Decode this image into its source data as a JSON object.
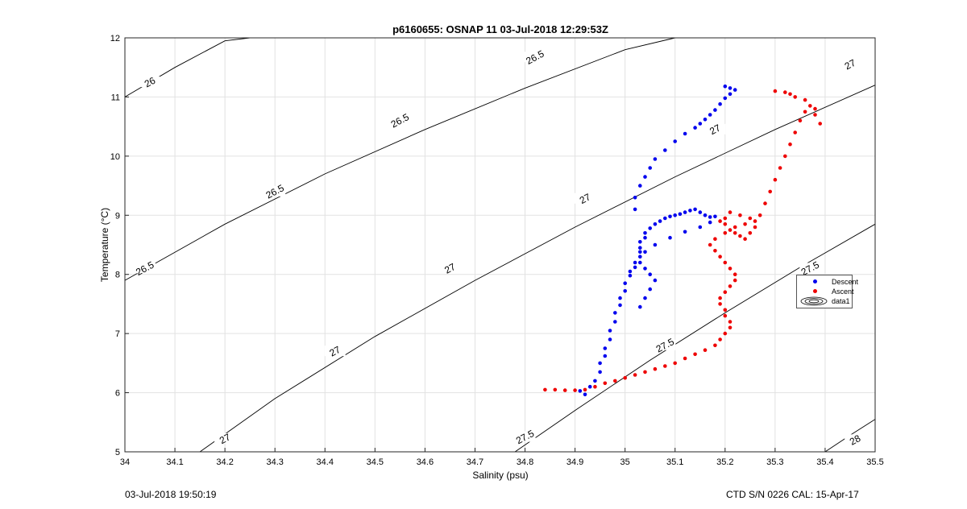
{
  "chart_data": {
    "type": "scatter",
    "title": "p6160655: OSNAP 11 03-Jul-2018 12:29:53Z",
    "xlabel": "Salinity (psu)",
    "ylabel": "Temperature (°C)",
    "xlim": [
      34,
      35.5
    ],
    "ylim": [
      5,
      12
    ],
    "x_ticks": [
      "34",
      "34.1",
      "34.2",
      "34.3",
      "34.4",
      "34.5",
      "34.6",
      "34.7",
      "34.8",
      "34.9",
      "35",
      "35.1",
      "35.2",
      "35.3",
      "35.4",
      "35.5"
    ],
    "y_ticks": [
      "5",
      "6",
      "7",
      "8",
      "9",
      "10",
      "11",
      "12"
    ],
    "grid": true,
    "legend_placement": "right-middle",
    "colors": {
      "descent": "#0000ee",
      "ascent": "#ee0000",
      "contour": "#000000",
      "grid": "#e2e2e2"
    },
    "series": [
      {
        "name": "Descent",
        "color": "#0000ee",
        "x": [
          34.92,
          34.91,
          34.93,
          34.94,
          34.95,
          34.95,
          34.96,
          34.96,
          34.97,
          34.97,
          34.98,
          34.98,
          34.99,
          34.99,
          35.0,
          35.0,
          35.01,
          35.01,
          35.02,
          35.02,
          35.03,
          35.03,
          35.03,
          35.03,
          35.04,
          35.04,
          35.05,
          35.06,
          35.07,
          35.08,
          35.09,
          35.1,
          35.11,
          35.12,
          35.13,
          35.14,
          35.15,
          35.16,
          35.17,
          35.18,
          35.17,
          35.15,
          35.12,
          35.09,
          35.06,
          35.04,
          35.03,
          35.04,
          35.05,
          35.06,
          35.05,
          35.04,
          35.03,
          35.02,
          35.02,
          35.03,
          35.04,
          35.05,
          35.06,
          35.08,
          35.1,
          35.12,
          35.14,
          35.15,
          35.16,
          35.17,
          35.18,
          35.19,
          35.2,
          35.21,
          35.22,
          35.21,
          35.2
        ],
        "y": [
          5.97,
          6.03,
          6.1,
          6.2,
          6.35,
          6.5,
          6.62,
          6.75,
          6.9,
          7.05,
          7.2,
          7.35,
          7.48,
          7.6,
          7.72,
          7.85,
          7.98,
          8.05,
          8.12,
          8.2,
          8.3,
          8.38,
          8.45,
          8.55,
          8.62,
          8.7,
          8.78,
          8.85,
          8.9,
          8.95,
          8.98,
          9.0,
          9.02,
          9.05,
          9.08,
          9.1,
          9.05,
          9.0,
          8.97,
          8.98,
          8.88,
          8.8,
          8.72,
          8.62,
          8.5,
          8.38,
          8.2,
          8.1,
          8.0,
          7.9,
          7.75,
          7.6,
          7.45,
          9.1,
          9.3,
          9.5,
          9.65,
          9.8,
          9.95,
          10.1,
          10.25,
          10.38,
          10.48,
          10.55,
          10.62,
          10.7,
          10.78,
          10.88,
          10.98,
          11.05,
          11.12,
          11.15,
          11.18
        ]
      },
      {
        "name": "Ascent",
        "color": "#ee0000",
        "x": [
          34.84,
          34.86,
          34.88,
          34.9,
          34.92,
          34.94,
          34.96,
          34.98,
          35.0,
          35.02,
          35.04,
          35.06,
          35.08,
          35.1,
          35.12,
          35.14,
          35.16,
          35.18,
          35.19,
          35.2,
          35.21,
          35.21,
          35.2,
          35.2,
          35.19,
          35.19,
          35.2,
          35.21,
          35.22,
          35.22,
          35.21,
          35.2,
          35.19,
          35.18,
          35.17,
          35.18,
          35.2,
          35.22,
          35.24,
          35.26,
          35.25,
          35.23,
          35.21,
          35.2,
          35.19,
          35.2,
          35.21,
          35.22,
          35.23,
          35.24,
          35.25,
          35.26,
          35.27,
          35.28,
          35.29,
          35.3,
          35.31,
          35.32,
          35.33,
          35.34,
          35.35,
          35.36,
          35.37,
          35.38,
          35.39,
          35.38,
          35.36,
          35.34,
          35.33,
          35.32,
          35.3
        ],
        "y": [
          6.05,
          6.05,
          6.04,
          6.04,
          6.05,
          6.1,
          6.16,
          6.2,
          6.25,
          6.3,
          6.35,
          6.4,
          6.45,
          6.5,
          6.58,
          6.65,
          6.72,
          6.8,
          6.9,
          7.0,
          7.1,
          7.2,
          7.3,
          7.4,
          7.5,
          7.6,
          7.7,
          7.8,
          7.9,
          8.0,
          8.1,
          8.2,
          8.3,
          8.4,
          8.5,
          8.6,
          8.7,
          8.8,
          8.85,
          8.9,
          8.95,
          9.0,
          9.05,
          8.95,
          8.9,
          8.85,
          8.75,
          8.7,
          8.65,
          8.6,
          8.7,
          8.8,
          9.0,
          9.2,
          9.4,
          9.6,
          9.8,
          10.0,
          10.2,
          10.4,
          10.6,
          10.75,
          10.85,
          10.7,
          10.55,
          10.8,
          10.95,
          11.0,
          11.05,
          11.08,
          11.1
        ]
      }
    ],
    "density_contours": [
      {
        "label": "26",
        "x": [
          34.0,
          34.1,
          34.2,
          34.25
        ],
        "y": [
          11.0,
          11.5,
          11.95,
          12.0
        ]
      },
      {
        "label": "26.5",
        "x": [
          34.0,
          34.2,
          34.4,
          34.6,
          34.8,
          35.0,
          35.1
        ],
        "y": [
          7.9,
          8.85,
          9.7,
          10.45,
          11.15,
          11.8,
          12.0
        ]
      },
      {
        "label": "27",
        "x": [
          34.15,
          34.3,
          34.5,
          34.7,
          34.9,
          35.1,
          35.3,
          35.5
        ],
        "y": [
          5.0,
          5.9,
          6.95,
          7.9,
          8.8,
          9.65,
          10.45,
          11.2
        ]
      },
      {
        "label": "27.5",
        "x": [
          34.78,
          34.9,
          35.05,
          35.2,
          35.35,
          35.5
        ],
        "y": [
          5.0,
          5.7,
          6.55,
          7.35,
          8.12,
          8.85
        ]
      },
      {
        "label": "28",
        "x": [
          35.4,
          35.45,
          35.5
        ],
        "y": [
          5.0,
          5.28,
          5.55
        ]
      }
    ],
    "contour_labels": [
      {
        "text": "26",
        "x": 34.05,
        "y": 11.25
      },
      {
        "text": "26.5",
        "x": 34.04,
        "y": 8.1
      },
      {
        "text": "26.5",
        "x": 34.3,
        "y": 9.4
      },
      {
        "text": "26.5",
        "x": 34.55,
        "y": 10.6
      },
      {
        "text": "26.5",
        "x": 34.82,
        "y": 11.67
      },
      {
        "text": "27",
        "x": 34.2,
        "y": 5.22
      },
      {
        "text": "27",
        "x": 34.42,
        "y": 6.7
      },
      {
        "text": "27",
        "x": 34.65,
        "y": 8.1
      },
      {
        "text": "27",
        "x": 34.92,
        "y": 9.28
      },
      {
        "text": "27",
        "x": 35.18,
        "y": 10.45
      },
      {
        "text": "27",
        "x": 35.45,
        "y": 11.55
      },
      {
        "text": "27.5",
        "x": 34.8,
        "y": 5.25
      },
      {
        "text": "27.5",
        "x": 35.08,
        "y": 6.8
      },
      {
        "text": "27.5",
        "x": 35.37,
        "y": 8.1
      },
      {
        "text": "28",
        "x": 35.46,
        "y": 5.2
      }
    ]
  },
  "legend": {
    "items": [
      {
        "label": "Descent",
        "color": "#0000ee"
      },
      {
        "label": "Ascent",
        "color": "#ee0000"
      },
      {
        "label": "data1",
        "icon": "contour-ellipse-icon"
      }
    ]
  },
  "footer": {
    "left": "03-Jul-2018 19:50:19",
    "right": "CTD S/N 0226  CAL: 15-Apr-17"
  }
}
